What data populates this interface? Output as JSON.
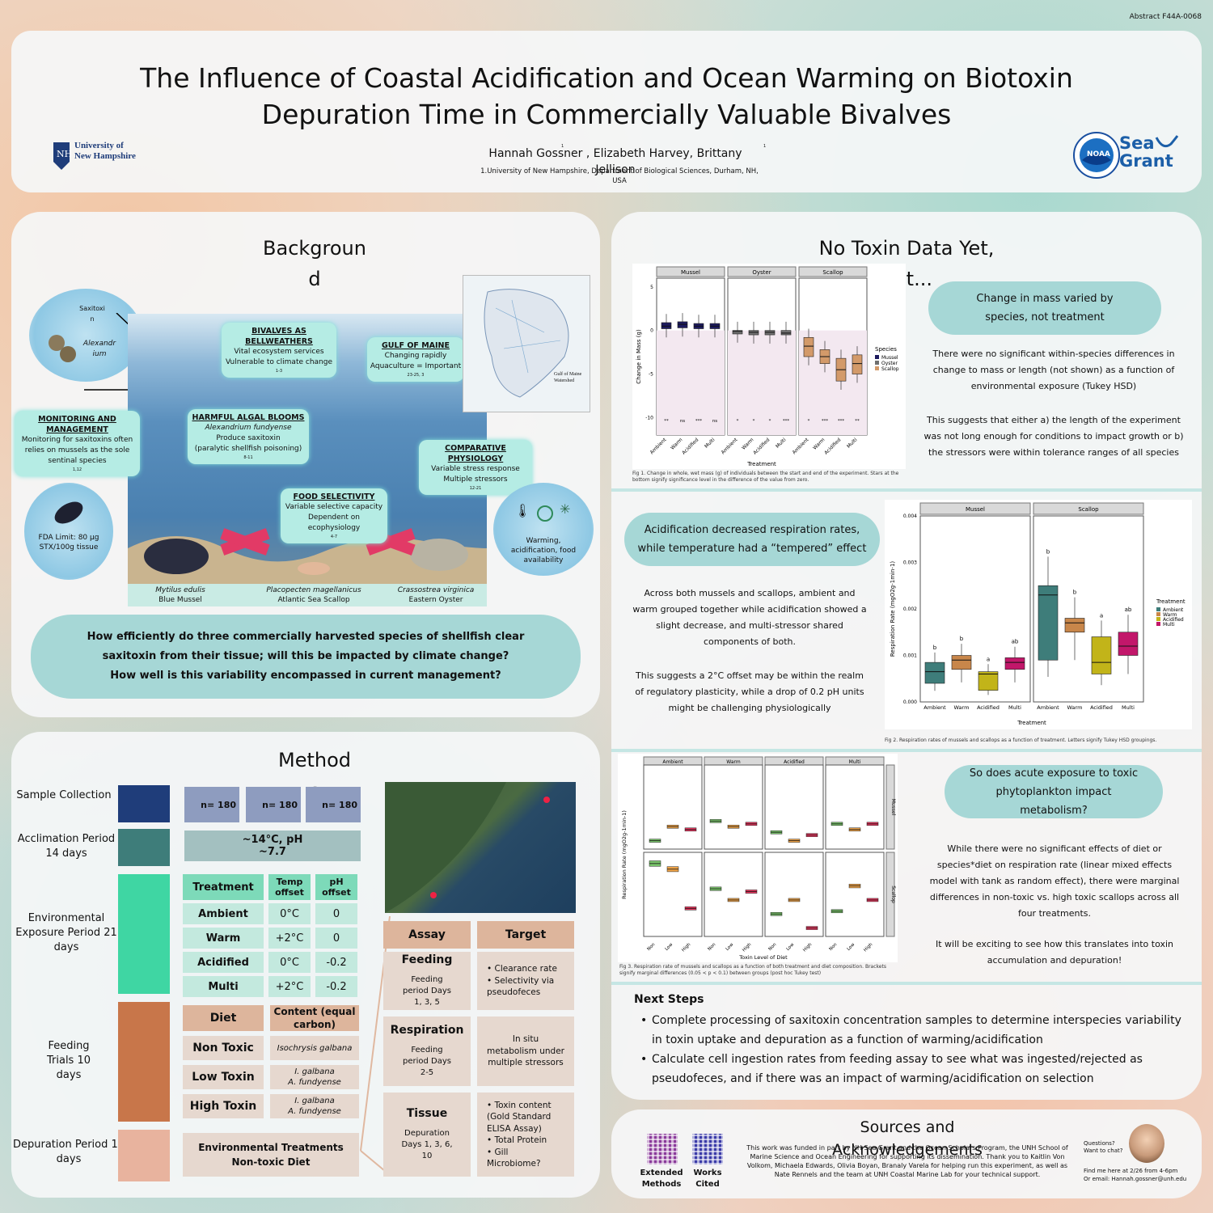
{
  "abstract_id": "Abstract F44A-0068",
  "header": {
    "title_line1": "The Influence of Coastal Acidification and Ocean Warming on Biotoxin",
    "title_line2": "Depuration Time in Commercially Valuable Bivalves",
    "authors": "Hannah Gossner , Elizabeth Harvey, Brittany Jellison",
    "affiliation": "1.University of New Hampshire, Department of Biological Sciences, Durham, NH, USA",
    "sup": "1",
    "unh_logo_line1": "University of",
    "unh_logo_line2": "New Hampshire",
    "noaa_logo": "NOAA",
    "seagrant_line1": "Sea",
    "seagrant_line2": "Grant"
  },
  "background": {
    "title": "Background",
    "saxitoxin": "Saxitoxin",
    "alexandrium": "Alexandrium",
    "monitoring_title": "MONITORING AND MANAGEMENT",
    "monitoring_text": "Monitoring for saxitoxins often relies on mussels as the sole sentinal species",
    "monitoring_ref": "1,12",
    "fda": "FDA Limit: 80 µg STX/100g tissue",
    "climate": "Warming, acidification, food availability",
    "signs": {
      "bellweathers": {
        "title": "BIVALVES AS BELLWEATHERS",
        "l1": "Vital ecosystem services",
        "l2": "Vulnerable to climate change",
        "ref": "1-3"
      },
      "gulf": {
        "title": "GULF OF MAINE",
        "l1": "Changing rapidly",
        "l2": "Aquaculture = Important",
        "ref": "23-25, 3"
      },
      "hab": {
        "title": "HARMFUL ALGAL BLOOMS",
        "l1": "Alexandrium fundyense",
        "l2": "Produce saxitoxin",
        "l3": "(paralytic shellfish poisoning)",
        "ref": "8-11"
      },
      "comparative": {
        "title": "COMPARATIVE PHYSIOLOGY",
        "l1": "Variable stress response",
        "l2": "Multiple stressors",
        "ref": "12-21"
      },
      "food": {
        "title": "FOOD SELECTIVITY",
        "l1": "Variable selective capacity",
        "l2": "Dependent on ecophysiology",
        "ref": "4-7"
      }
    },
    "map_label": "Gulf of Maine Watershed",
    "species": [
      {
        "sci": "Mytilus edulis",
        "common": "Blue Mussel"
      },
      {
        "sci": "Placopecten magellanicus",
        "common": "Atlantic Sea Scallop"
      },
      {
        "sci": "Crassostrea virginica",
        "common": "Eastern Oyster"
      }
    ],
    "question_l1": "How efficiently do three commercially harvested species of shellfish clear",
    "question_l2": "saxitoxin from their tissue; will this be impacted by climate change?",
    "question_l3": "How well is this variability encompassed in current management?"
  },
  "methods": {
    "title": "Methods",
    "stages": [
      {
        "name": "Sample Collection",
        "color": "#1f3d7a"
      },
      {
        "name": "Acclimation Period 14 days",
        "color": "#3e7d7a"
      },
      {
        "name": "Environmental Exposure Period 21 days",
        "color": "#3fd6a3"
      },
      {
        "name": "Feeding Trials 10 days",
        "color": "#c8764a"
      },
      {
        "name": "Depuration Period 10 days",
        "color": "#e8b39e"
      }
    ],
    "samples": [
      "n= 180",
      "n= 180",
      "n= 180"
    ],
    "acclimation": "~14°C, pH ~7.7",
    "treat_headers": [
      "Treatment",
      "Temp offset",
      "pH offset"
    ],
    "treatments": [
      [
        "Ambient",
        "0°C",
        "0"
      ],
      [
        "Warm",
        "+2°C",
        "0"
      ],
      [
        "Acidified",
        "0°C",
        "-0.2"
      ],
      [
        "Multi",
        "+2°C",
        "-0.2"
      ]
    ],
    "diet_headers": [
      "Diet",
      "Content (equal carbon)"
    ],
    "diets": [
      {
        "name": "Non Toxic",
        "c1": "Isochrysis galbana",
        "c2": ""
      },
      {
        "name": "Low Toxin",
        "c1": "I. galbana",
        "c2": "A. fundyense"
      },
      {
        "name": "High Toxin",
        "c1": "I. galbana",
        "c2": "A. fundyense"
      }
    ],
    "depuration": "Environmental Treatments Non-toxic Diet",
    "assay_headers": [
      "Assay",
      "Target"
    ],
    "assays": [
      {
        "name": "Feeding",
        "detail": "Feeding period Days 1, 3, 5",
        "targets": [
          "Clearance rate",
          "Selectivity via pseudofeces"
        ]
      },
      {
        "name": "Respiration",
        "detail": "Feeding period Days 2-5",
        "targets": [
          "In situ metabolism under multiple stressors"
        ]
      },
      {
        "name": "Tissue",
        "detail": "Depuration Days 1, 3, 6, 10",
        "targets": [
          "Toxin content (Gold Standard ELISA Assay)",
          "Total Protein",
          "Gill Microbiome?"
        ]
      }
    ]
  },
  "results": {
    "title": "No Toxin Data Yet, But...",
    "r1_pill": "Change in mass varied by species, not treatment",
    "r1_text1": "There were no significant within-species differences in change to mass or length (not shown) as a function of environmental exposure (Tukey HSD)",
    "r1_text2": "This suggests that either a) the length of the experiment was not long enough for conditions to impact growth or b) the stressors were within tolerance ranges of all species",
    "fig1_caption": "Fig 1. Change in whole, wet mass (g) of individuals between the start and end of the experiment. Stars at the bottom signify significance level in the difference of the value from zero.",
    "r2_pill": "Acidification decreased respiration rates, while temperature had a “tempered” effect",
    "r2_text1": "Across both mussels and scallops, ambient and warm grouped together while acidification showed a slight decrease, and multi-stressor shared components of both.",
    "r2_text2": "This suggests a 2°C offset may be within the realm of regulatory plasticity, while a drop of 0.2 pH units might be challenging physiologically",
    "fig2_caption": "Fig 2. Respiration rates of mussels and scallops as a function of treatment. Letters signify Tukey HSD groupings.",
    "r3_pill": "So does acute exposure to toxic phytoplankton impact metabolism?",
    "r3_text1": "While there were no significant effects of diet or species*diet on respiration rate (linear mixed effects model with tank as random effect), there were marginal differences in non-toxic vs. high toxic scallops across all four treatments.",
    "r3_text2": "It will be exciting to see how this translates into toxin accumulation and depuration!",
    "fig3_caption": "Fig 3. Respiration rate of mussels and scallops as a function of both treatment and diet composition. Brackets signify marginal differences (0.05 < p < 0.1) between groups (post hoc Tukey test)"
  },
  "chart_data": [
    {
      "type": "box",
      "title": "",
      "xlabel": "Treatment",
      "ylabel": "Change in Mass (g)",
      "ylim": [
        -12,
        6
      ],
      "facets": [
        "Mussel",
        "Oyster",
        "Scallop"
      ],
      "categories": [
        "Ambient",
        "Warm",
        "Acidified",
        "Multi"
      ],
      "legend_title": "Species",
      "series": [
        {
          "name": "Mussel",
          "color": "#1c1a5e",
          "medians": [
            0.5,
            0.7,
            0.5,
            0.5
          ],
          "q1": [
            0.2,
            0.3,
            0.2,
            0.2
          ],
          "q3": [
            0.9,
            1.0,
            0.8,
            0.8
          ],
          "sig": [
            "**",
            "ns",
            "***",
            "ns"
          ]
        },
        {
          "name": "Oyster",
          "color": "#6f6f6f",
          "medians": [
            -0.1,
            -0.2,
            -0.2,
            -0.3
          ],
          "q1": [
            -0.4,
            -0.5,
            -0.5,
            -0.5
          ],
          "q3": [
            0.0,
            0.0,
            0.0,
            0.0
          ],
          "sig": [
            "*",
            "*",
            "*",
            "***"
          ]
        },
        {
          "name": "Scallop",
          "color": "#d39a6a",
          "medians": [
            -1.8,
            -3.0,
            -4.5,
            -3.8
          ],
          "q1": [
            -3.0,
            -3.8,
            -5.8,
            -5.0
          ],
          "q3": [
            -0.8,
            -2.2,
            -3.2,
            -2.8
          ],
          "sig": [
            "*",
            "***",
            "***",
            "**"
          ]
        }
      ]
    },
    {
      "type": "box",
      "title": "",
      "xlabel": "Treatment",
      "ylabel": "Respiration Rate (mgO2g-1min-1)",
      "ylim": [
        0,
        0.004
      ],
      "facets": [
        "Mussel",
        "Scallop"
      ],
      "categories": [
        "Ambient",
        "Warm",
        "Acidified",
        "Multi"
      ],
      "legend_title": "Treatment",
      "colors": [
        "#3e7d7a",
        "#c8864a",
        "#c2b419",
        "#c2176a"
      ],
      "series": [
        {
          "name": "Mussel",
          "medians": [
            0.00065,
            0.0009,
            0.0006,
            0.00085
          ],
          "q1": [
            0.0004,
            0.0007,
            0.00025,
            0.0007
          ],
          "q3": [
            0.00085,
            0.001,
            0.00065,
            0.00095
          ],
          "groups": [
            "b",
            "b",
            "a",
            "ab"
          ]
        },
        {
          "name": "Scallop",
          "medians": [
            0.0023,
            0.0017,
            0.00085,
            0.0012
          ],
          "q1": [
            0.0009,
            0.0015,
            0.0006,
            0.001
          ],
          "q3": [
            0.0025,
            0.0018,
            0.0014,
            0.0015
          ],
          "groups": [
            "b",
            "b",
            "a",
            "ab"
          ]
        }
      ]
    },
    {
      "type": "box",
      "title": "",
      "xlabel": "Toxin Level of Diet",
      "ylabel": "Respiration Rate (mgO2g-1min-1)",
      "ylim": [
        0,
        0.003
      ],
      "facets": [
        "Ambient",
        "Warm",
        "Acidified",
        "Multi"
      ],
      "rows": [
        "Mussel",
        "Scallop"
      ],
      "categories": [
        "Non",
        "Low",
        "High"
      ],
      "colors": [
        "#79c46b",
        "#f0a448",
        "#e8365e"
      ],
      "series": [
        {
          "name": "Mussel",
          "medians": [
            [
              0.0003,
              0.0008,
              0.0007
            ],
            [
              0.001,
              0.0008,
              0.0009
            ],
            [
              0.0006,
              0.0003,
              0.0005
            ],
            [
              0.0009,
              0.0007,
              0.0009
            ]
          ]
        },
        {
          "name": "Scallop",
          "medians": [
            [
              0.0026,
              0.0024,
              0.001
            ],
            [
              0.0017,
              0.0013,
              0.0016
            ],
            [
              0.0008,
              0.0013,
              0.0003
            ],
            [
              0.0009,
              0.0018,
              0.0013
            ]
          ]
        }
      ]
    }
  ],
  "next_steps": {
    "title": "Next Steps",
    "items": [
      "Complete processing of saxitoxin concentration samples to determine interspecies variability in toxin uptake and depuration as a function of warming/acidification",
      "Calculate cell ingestion rates from feeding assay to see what was ingested/rejected as pseudofeces, and if there was an impact of warming/acidification on selection"
    ]
  },
  "sources": {
    "title": "Sources and Acknowledgements",
    "qr1": "Extended Methods",
    "qr2": "Works Cited",
    "text": "This work was funded in part by NH Sea Grant and the Ocean Scholars Program, the UNH School of Marine Science and Ocean Engineering for supporting its dissemination. Thank you to Kaitlin Von Volkom, Michaela Edwards, Olivia Boyan, Branaly Varela for helping run this experiment, as well as Nate Rennels and the team at UNH Coastal Marine Lab for your technical support.",
    "questions": "Questions? Want to chat?",
    "find": "Find me here at 2/26 from 4-6pm",
    "email": "Or email: Hannah.gossner@unh.edu"
  }
}
